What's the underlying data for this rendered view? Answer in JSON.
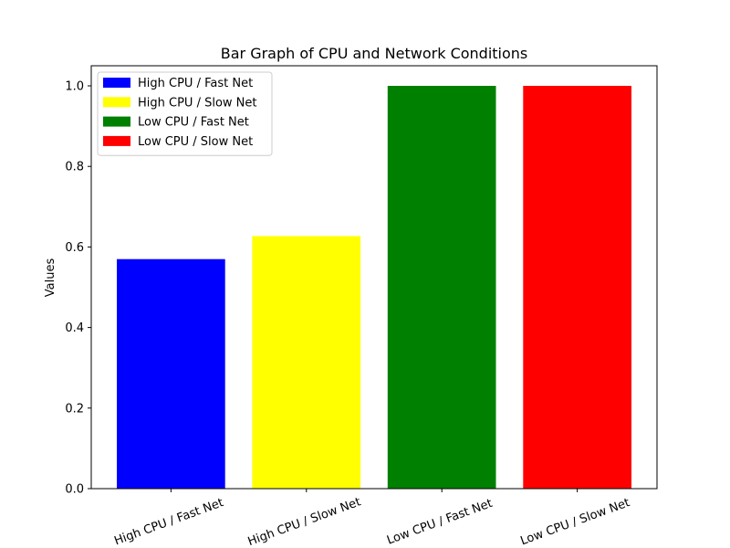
{
  "chart_data": {
    "type": "bar",
    "title": "Bar Graph of CPU and Network Conditions",
    "xlabel": "",
    "ylabel": "Values",
    "ylim": [
      0,
      1.05
    ],
    "yticks": [
      "0.0",
      "0.2",
      "0.4",
      "0.6",
      "0.8",
      "1.0"
    ],
    "grid": false,
    "legend_position": "top-left",
    "categories": [
      "High CPU / Fast Net",
      "High CPU / Slow Net",
      "Low CPU / Fast Net",
      "Low CPU / Slow Net"
    ],
    "values": [
      0.57,
      0.627,
      1.0,
      1.0
    ],
    "colors": [
      "#0000ff",
      "#ffff00",
      "#008000",
      "#ff0000"
    ],
    "legend": [
      {
        "label": "High CPU / Fast Net",
        "color": "#0000ff"
      },
      {
        "label": "High CPU / Slow Net",
        "color": "#ffff00"
      },
      {
        "label": "Low CPU / Fast Net",
        "color": "#008000"
      },
      {
        "label": "Low CPU / Slow Net",
        "color": "#ff0000"
      }
    ]
  }
}
